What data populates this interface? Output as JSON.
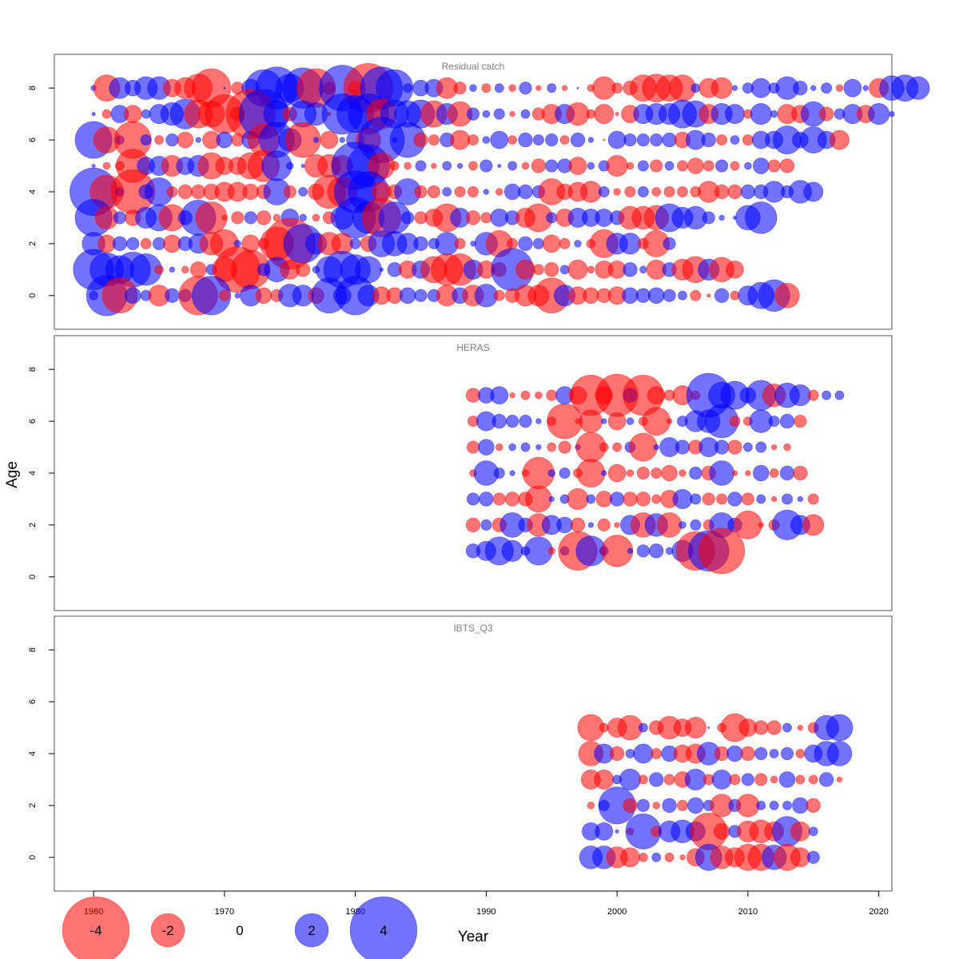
{
  "chart_data": {
    "type": "scatter",
    "style": "bubble",
    "xlabel": "Year",
    "ylabel": "Age",
    "xlim": [
      1957,
      2021
    ],
    "ylim": [
      -1.3,
      9.3
    ],
    "x_ticks": [
      "1960",
      "1970",
      "1980",
      "1990",
      "2000",
      "2010",
      "2020"
    ],
    "y_ticks": [
      "0",
      "2",
      "4",
      "6",
      "8"
    ],
    "colors": {
      "positive": "#0000ff",
      "negative": "#ff0000",
      "opacity": 0.55
    },
    "legend": {
      "items": [
        {
          "label": "-4",
          "value": -4
        },
        {
          "label": "-2",
          "value": -2
        },
        {
          "label": "0",
          "value": 0
        },
        {
          "label": "2",
          "value": 2
        },
        {
          "label": "4",
          "value": 4
        }
      ]
    },
    "panels": [
      {
        "title": "Residual catch",
        "years_start": 1960,
        "ages": [
          {
            "age": 8,
            "values": [
              0.3,
              -1.5,
              1.2,
              0.9,
              1.3,
              1.3,
              -1,
              -1.2,
              -1.6,
              -2.2,
              0.1,
              -0.7,
              1,
              2.1,
              2.4,
              1.6,
              2.3,
              -2.2,
              -0.7,
              2.6,
              -0.8,
              -2.8,
              2.4,
              2.1,
              0.5,
              0.9,
              1,
              -1.2,
              -0.7,
              0.4,
              -0.5,
              0.5,
              -0.4,
              0.7,
              -0.3,
              0.5,
              -0.3,
              0.1,
              -0.4,
              -1.3,
              -0.6,
              -0.8,
              -1.5,
              -1.6,
              -1.5,
              -1.5,
              0.5,
              -1.1,
              -1.2,
              0.3,
              0.6,
              1.1,
              0.6,
              1.3,
              0.8,
              0.3,
              0.6,
              -0.4,
              1,
              0.3,
              -1.1,
              1.4,
              1.5,
              1.3
            ]
          },
          {
            "age": 7,
            "values": [
              0.2,
              -0.5,
              1,
              -1,
              0.5,
              1.1,
              1.3,
              1.7,
              -1.6,
              -1.5,
              -2.2,
              -0.8,
              -2.8,
              2.8,
              1.5,
              -0.8,
              1.5,
              1.3,
              -0.2,
              2.3,
              2.1,
              2.3,
              -1.7,
              1.6,
              1.5,
              1.6,
              -1.5,
              1.2,
              -1.4,
              0.7,
              0.4,
              0.6,
              -0.3,
              0.5,
              -0.7,
              -1.1,
              1.1,
              -1.3,
              -0.5,
              -1.1,
              -0.2,
              -1,
              1.1,
              1.2,
              1.2,
              1.6,
              1.5,
              -1.1,
              1.2,
              1.1,
              -0.5,
              1.2,
              0.4,
              -1.1,
              -1,
              1.4,
              -0.8,
              0.6,
              1.1,
              -1,
              1.2,
              0.3
            ]
          },
          {
            "age": 6,
            "values": [
              2.1,
              -1.5,
              0.5,
              -2.1,
              0.6,
              -0.5,
              0.7,
              -0.9,
              0.3,
              -1,
              0.9,
              -0.7,
              1,
              -1.8,
              2,
              1.3,
              -2,
              0.3,
              -1,
              0.3,
              1,
              -1.4,
              2.6,
              0.3,
              2,
              -0.8,
              -0.6,
              0.8,
              -1.1,
              -0.6,
              0.4,
              1,
              -0.5,
              0.8,
              0.6,
              0.7,
              -0.5,
              0.8,
              0.3,
              -0.1,
              1,
              0.7,
              0.7,
              0.7,
              0.8,
              -0.9,
              1.1,
              0.8,
              -0.6,
              0.5,
              -0.6,
              1,
              1,
              1.6,
              0.9,
              1.5,
              1,
              -1.1
            ]
          },
          {
            "age": 5,
            "values": [
              0.2,
              -0.4,
              -0.5,
              -1.9,
              1,
              1.1,
              -1.2,
              1,
              1.2,
              -1.5,
              -1,
              -1,
              -1.5,
              -1.8,
              1.7,
              0.4,
              0.2,
              -1.3,
              -1.3,
              -1.2,
              2.7,
              2.4,
              -1.5,
              -0.5,
              -0.4,
              0.6,
              -0.3,
              0.5,
              0.3,
              -0.5,
              0.7,
              0.2,
              0.5,
              -0.4,
              -0.8,
              0.7,
              0.8,
              -1,
              0.4,
              0.6,
              -1.2,
              -0.4,
              0.6,
              -0.7,
              0.5,
              -0.6,
              -0.9,
              -0.6,
              0.7,
              -0.5,
              0.4,
              0.9,
              -0.7,
              -0.8
            ]
          },
          {
            "age": 4,
            "values": [
              2.7,
              -1.9,
              0.5,
              -2.5,
              0.8,
              1.6,
              -0.6,
              -0.8,
              -0.8,
              -0.9,
              -1.1,
              -1.1,
              -0.9,
              -0.8,
              1.5,
              -0.7,
              0.5,
              -0.9,
              -1.9,
              -1.7,
              2.4,
              2.3,
              -1.1,
              -0.8,
              1.5,
              -0.7,
              -0.7,
              0.5,
              -0.6,
              -0.6,
              0.3,
              -0.4,
              0.9,
              0.8,
              0.7,
              -1.5,
              -0.9,
              -1.1,
              -1.2,
              0.6,
              -0.4,
              -0.6,
              0.6,
              -0.5,
              -0.6,
              -0.6,
              -0.6,
              -1.2,
              -0.8,
              -0.8,
              0.8,
              0.8,
              1.2,
              0.7,
              1.3,
              1.1
            ]
          },
          {
            "age": 3,
            "values": [
              2.1,
              -1.3,
              0.7,
              -0.9,
              1.2,
              1.5,
              -1.5,
              0.8,
              2,
              -1.8,
              -0.3,
              -0.7,
              0.7,
              -0.8,
              -0.4,
              1,
              0.4,
              -0.4,
              -0.7,
              1.3,
              2.3,
              1.8,
              -2.2,
              1.8,
              0.7,
              -0.7,
              -1,
              -1.6,
              1.1,
              -0.8,
              -0.6,
              1,
              0.8,
              -1.1,
              -1.6,
              0.6,
              -1,
              1.1,
              1,
              1,
              0.8,
              -1.3,
              -1.3,
              -1.4,
              1.6,
              1.2,
              1.3,
              0.7,
              0.3,
              0.2,
              1.4,
              1.8
            ]
          },
          {
            "age": 2,
            "values": [
              1.3,
              -1,
              0.8,
              0.7,
              -0.6,
              0.7,
              -1,
              0.8,
              1.1,
              -1.3,
              -1.6,
              0.4,
              -1,
              -0.6,
              -1.9,
              -2.9,
              2.2,
              1.2,
              -1.3,
              -1.2,
              0.6,
              -0.9,
              1.5,
              1.4,
              1.2,
              0.8,
              0.6,
              1.3,
              -0.6,
              0.3,
              1.3,
              -1.5,
              -0.6,
              0.8,
              0.6,
              -1,
              -0.6,
              0.4,
              -0.5,
              -1.6,
              1.2,
              1.2,
              -0.6,
              -1.5,
              0.7
            ]
          },
          {
            "age": 1,
            "values": [
              2.3,
              1.9,
              1.6,
              2,
              1.8,
              -0.5,
              0.3,
              -0.4,
              -0.9,
              0.6,
              -1.4,
              -2.6,
              -2.2,
              0.7,
              1.4,
              -1.1,
              -0.8,
              0.4,
              1.5,
              2.1,
              1.7,
              1.5,
              0.2,
              0.8,
              -1,
              1,
              -1.5,
              -1.8,
              -1.8,
              1.1,
              -1,
              -0.8,
              2.4,
              -1.1,
              -0.6,
              -0.8,
              0.5,
              -1.1,
              -0.4,
              -1,
              -1,
              0.8,
              0.4,
              -1.1,
              0.8,
              -1.2,
              -1.5,
              1.2,
              -1.4,
              -1
            ]
          },
          {
            "age": 0,
            "values": [
              0.5,
              2.3,
              -2,
              0.9,
              0.6,
              -1.2,
              0.8,
              0.7,
              -2.2,
              2.2,
              -0.6,
              0.3,
              1.2,
              -0.9,
              -0.7,
              1.3,
              1.2,
              -0.9,
              2,
              1,
              2.2,
              1.2,
              -1,
              -0.9,
              0.9,
              0.7,
              0.7,
              -1.2,
              0.9,
              -1.2,
              1.3,
              -0.6,
              -0.8,
              -1.2,
              -1.2,
              -2,
              1.2,
              -1,
              -0.9,
              -0.8,
              -1,
              0.9,
              0.8,
              0.9,
              0.7,
              0.5,
              -0.6,
              -0.2,
              0.8,
              -0.5,
              1.1,
              1.5,
              1.8,
              -1.4
            ]
          }
        ]
      },
      {
        "title": "HERAS",
        "years_start": 1989,
        "ages": [
          {
            "age": 7,
            "values": [
              -0.8,
              0.9,
              1,
              -0.3,
              -0.5,
              -0.4,
              -0.6,
              1,
              -1,
              -2.3,
              -1,
              -2.4,
              0.8,
              -2.3,
              -1,
              -0.6,
              -1.1,
              -0.5,
              2.5,
              1.5,
              1.6,
              0.9,
              1.7,
              -1.3,
              1.4,
              1.2,
              -0.6,
              0.5,
              0.5
            ]
          },
          {
            "age": 6,
            "values": [
              -0.6,
              1.1,
              0.8,
              0.7,
              0.7,
              0.3,
              -0.5,
              -2,
              -0.3,
              -1.3,
              0.3,
              -1,
              0.4,
              -0.5,
              -1.6,
              -0.3,
              0.6,
              1.2,
              1.3,
              1.9,
              -0.6,
              -0.5,
              1.3,
              0.6,
              0.8,
              -0.7
            ]
          },
          {
            "age": 5,
            "values": [
              -0.7,
              0.9,
              -0.4,
              0.4,
              0.5,
              0.3,
              -0.5,
              -0.7,
              0.3,
              -1.7,
              -0.5,
              -0.5,
              0.6,
              -1.6,
              0.3,
              1.1,
              0.8,
              -0.8,
              1.1,
              0.8,
              -0.8,
              0.5,
              0.6,
              -0.3,
              -0.4
            ]
          },
          {
            "age": 4,
            "values": [
              -0.4,
              1.4,
              0.6,
              0.3,
              -0.4,
              -1.8,
              0.4,
              0.6,
              -0.5,
              -1.6,
              0.3,
              -1,
              -0.4,
              -0.7,
              -0.6,
              -0.9,
              -0.4,
              0.7,
              -0.8,
              1.4,
              -0.3,
              -0.3,
              0.9,
              -0.5,
              0.8,
              -0.8
            ]
          },
          {
            "age": 3,
            "values": [
              0.7,
              0.8,
              -0.7,
              -0.8,
              -0.8,
              -1.5,
              0.3,
              0.5,
              -1.2,
              0.5,
              -0.9,
              0.8,
              -0.8,
              -0.8,
              -0.5,
              -1,
              1.1,
              0.6,
              -0.7,
              -0.6,
              0.8,
              -0.7,
              0.5,
              -0.3,
              0.6,
              0.3,
              -0.6
            ]
          },
          {
            "age": 2,
            "values": [
              -0.8,
              0.6,
              -0.8,
              1.4,
              0.8,
              -1.3,
              1.1,
              0.9,
              -0.8,
              0.3,
              -0.7,
              -0.3,
              1.1,
              -1.4,
              1.3,
              -1.4,
              0.4,
              0.6,
              -0.6,
              1.4,
              0.8,
              -1.6,
              -0.3,
              -0.6,
              1.7,
              1.1,
              -1.2
            ]
          },
          {
            "age": 1,
            "values": [
              0.8,
              1.1,
              1.6,
              1.2,
              0.5,
              1.6,
              -0.4,
              0.5,
              -2.2,
              1.7,
              0.5,
              -1.8,
              0.3,
              0.7,
              0.8,
              0.4,
              1.2,
              -2.2,
              2.3,
              -2.6
            ]
          }
        ]
      },
      {
        "title": "IBTS_Q3",
        "years_start": 1998,
        "ages": [
          {
            "age": 5,
            "values": [
              -1.5,
              -0.5,
              -1.1,
              -1.4,
              0.5,
              -0.8,
              -1.3,
              -1,
              -1.2,
              0.1,
              -0.5,
              -1.6,
              -1,
              -0.8,
              -0.8,
              0.5,
              -0.3,
              -0.6,
              1.4,
              1.5
            ]
          },
          {
            "age": 4,
            "values": [
              -1.4,
              1.1,
              -0.8,
              0.5,
              1.1,
              -0.6,
              0.9,
              -1,
              -1.1,
              1.3,
              -0.8,
              0.9,
              -0.8,
              0.7,
              0.5,
              0.7,
              -0.5,
              1,
              1.4,
              1.4
            ]
          },
          {
            "age": 3,
            "values": [
              -1.1,
              -1.1,
              0.5,
              1.2,
              -0.5,
              0.8,
              -0.6,
              -0.9,
              1.2,
              -0.6,
              1.1,
              -0.6,
              0.7,
              -0.7,
              -0.4,
              0.9,
              -0.5,
              -0.5,
              0.8,
              -0.3
            ]
          },
          {
            "age": 2,
            "values": [
              -0.4,
              0.6,
              2.1,
              -0.8,
              0.7,
              -0.4,
              0.8,
              -0.6,
              0.9,
              0.6,
              -1.3,
              0.7,
              -1.3,
              0.5,
              0.5,
              0.5,
              0.9,
              -0.8
            ]
          },
          {
            "age": 1,
            "values": [
              1,
              1,
              0.2,
              -0.4,
              2,
              -0.6,
              1.2,
              1.3,
              1.1,
              -2.1,
              -0.9,
              0.7,
              -1.2,
              -1.3,
              -1.1,
              1.7,
              -1.1,
              0.5
            ]
          },
          {
            "age": 0,
            "values": [
              1.3,
              1.3,
              -1.2,
              -1.1,
              -0.5,
              0.5,
              -0.5,
              -0.3,
              -1,
              1.5,
              -1.3,
              -1.1,
              -1.5,
              -1.5,
              1.4,
              -1.5,
              -1.1,
              0.7
            ]
          }
        ]
      }
    ]
  }
}
